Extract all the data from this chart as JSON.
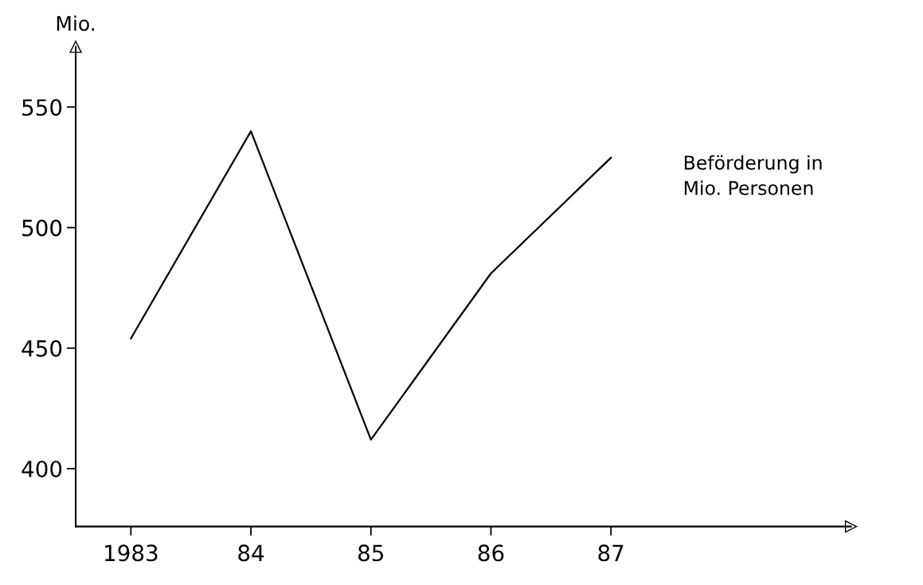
{
  "chart_data": {
    "type": "line",
    "ylabel": "Mio.",
    "categories": [
      "1983",
      "84",
      "85",
      "86",
      "87"
    ],
    "series": [
      {
        "name": "Beförderung in\nMio. Personen",
        "color": "#000000",
        "values": [
          454,
          540,
          412,
          481,
          529
        ]
      }
    ],
    "ylim": [
      376,
      575
    ],
    "yticks": [
      400,
      450,
      500,
      550
    ],
    "grid": false,
    "legend": false,
    "marker": "none",
    "line_style": "solid"
  }
}
